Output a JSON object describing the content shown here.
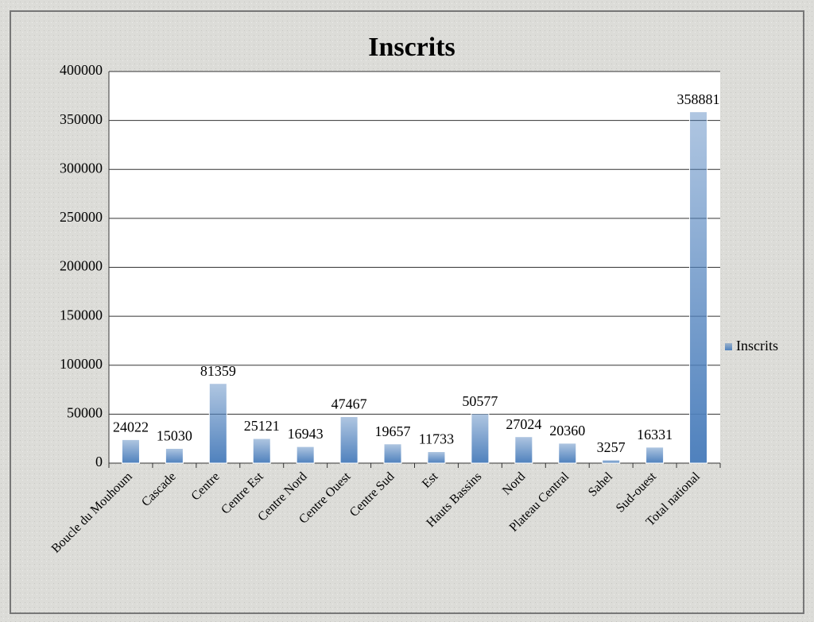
{
  "chart_data": {
    "type": "bar",
    "title": "Inscrits",
    "categories": [
      "Boucle du Mouhoum",
      "Cascade",
      "Centre",
      "Centre Est",
      "Centre Nord",
      "Centre Ouest",
      "Centre Sud",
      "Est",
      "Hauts Bassins",
      "Nord",
      "Plateau Central",
      "Sahel",
      "Sud-ouest",
      "Total national"
    ],
    "series": [
      {
        "name": "Inscrits",
        "color": "#4f81bd",
        "values": [
          24022,
          15030,
          81359,
          25121,
          16943,
          47467,
          19657,
          11733,
          50577,
          27024,
          20360,
          3257,
          16331,
          358881
        ]
      }
    ],
    "ylim": [
      0,
      400000
    ],
    "yticks": [
      0,
      50000,
      100000,
      150000,
      200000,
      250000,
      300000,
      350000,
      400000
    ],
    "grid": true,
    "legend": "right"
  }
}
